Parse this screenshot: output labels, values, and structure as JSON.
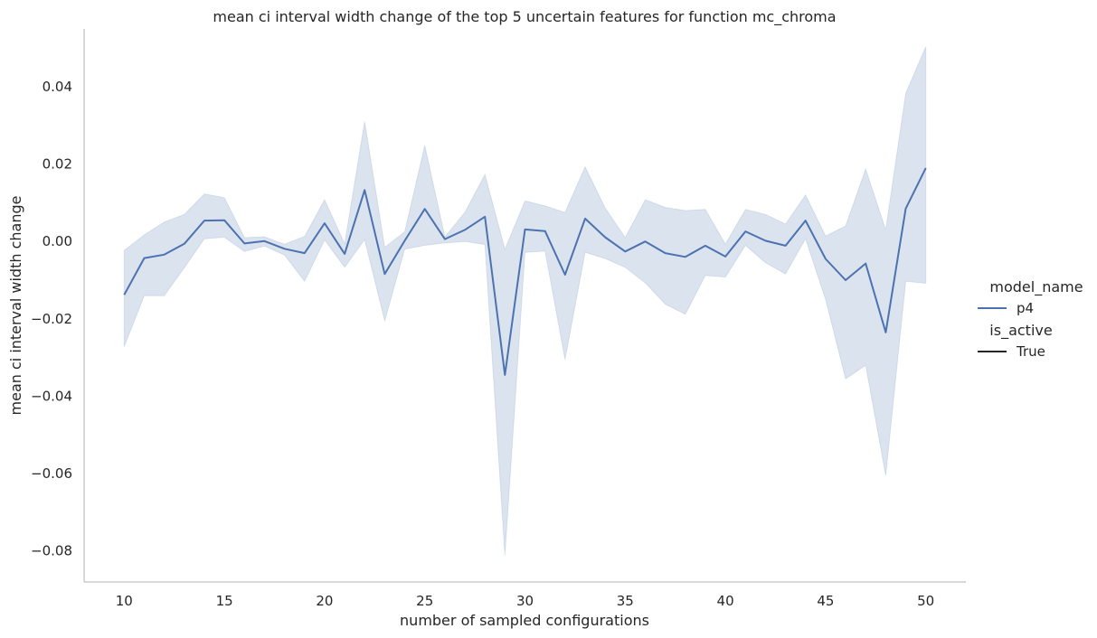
{
  "chart_data": {
    "type": "line",
    "title": "mean ci interval width change of the top 5 uncertain features for function mc_chroma",
    "xlabel": "number of sampled configurations",
    "ylabel": "mean ci interval width change",
    "xlim": [
      8,
      52
    ],
    "ylim": [
      -0.088,
      0.054
    ],
    "xticks": [
      10,
      15,
      20,
      25,
      30,
      35,
      40,
      45,
      50
    ],
    "xtick_labels": [
      "10",
      "15",
      "20",
      "25",
      "30",
      "35",
      "40",
      "45",
      "50"
    ],
    "yticks": [
      -0.08,
      -0.06,
      -0.04,
      -0.02,
      0.0,
      0.02,
      0.04
    ],
    "ytick_labels": [
      "−0.08",
      "−0.06",
      "−0.04",
      "−0.02",
      "0.00",
      "0.02",
      "0.04"
    ],
    "grid": false,
    "legend_placement": "right",
    "legend": {
      "hue_title": "model_name",
      "hue_entries": [
        {
          "label": "p4",
          "color": "#4c72b0"
        }
      ],
      "style_title": "is_active",
      "style_entries": [
        {
          "label": "True",
          "color": "#262626"
        }
      ]
    },
    "colors": {
      "line": "#4c72b0",
      "band": "#4c72b0",
      "band_opacity": 0.2
    },
    "series": [
      {
        "name": "p4",
        "x": [
          10,
          11,
          12,
          13,
          14,
          15,
          16,
          17,
          18,
          19,
          20,
          21,
          22,
          23,
          24,
          25,
          26,
          27,
          28,
          29,
          30,
          31,
          32,
          33,
          34,
          35,
          36,
          37,
          38,
          39,
          40,
          41,
          42,
          43,
          44,
          45,
          46,
          47,
          48,
          49,
          50
        ],
        "y": [
          -0.0138,
          -0.0043,
          -0.0034,
          -0.0006,
          0.0054,
          0.0055,
          -0.0005,
          0.0001,
          -0.0019,
          -0.003,
          0.0047,
          -0.0032,
          0.0133,
          -0.0084,
          0.0002,
          0.0084,
          0.0006,
          0.003,
          0.0064,
          -0.0345,
          0.0031,
          0.0027,
          -0.0086,
          0.0059,
          0.0011,
          -0.0026,
          0.0,
          -0.003,
          -0.004,
          -0.0011,
          -0.0039,
          0.0026,
          0.0002,
          -0.0011,
          0.0054,
          -0.0045,
          -0.01,
          -0.0057,
          -0.0235,
          0.0085,
          0.019
        ],
        "ci_upper": [
          -0.0023,
          0.0017,
          0.005,
          0.007,
          0.0123,
          0.0113,
          0.001,
          0.0012,
          -0.0007,
          0.0013,
          0.0108,
          -0.0006,
          0.031,
          -0.0015,
          0.0025,
          0.0248,
          0.0012,
          0.0075,
          0.0173,
          -0.002,
          0.0105,
          0.0092,
          0.0075,
          0.0193,
          0.0087,
          0.001,
          0.0108,
          0.0088,
          0.008,
          0.0083,
          -0.0007,
          0.0083,
          0.007,
          0.0045,
          0.012,
          0.0014,
          0.004,
          0.0187,
          0.003,
          0.0383,
          0.0503
        ],
        "ci_lower": [
          -0.0272,
          -0.014,
          -0.014,
          -0.0068,
          0.0007,
          0.0011,
          -0.0026,
          -0.0012,
          -0.0035,
          -0.0103,
          0.0004,
          -0.0067,
          0.0005,
          -0.0205,
          -0.002,
          -0.001,
          -0.0004,
          0.0,
          -0.0008,
          -0.0812,
          -0.0028,
          -0.0025,
          -0.0305,
          -0.0028,
          -0.0044,
          -0.0067,
          -0.0107,
          -0.0162,
          -0.0188,
          -0.0088,
          -0.0092,
          -0.001,
          -0.0055,
          -0.0084,
          0.0007,
          -0.015,
          -0.0355,
          -0.032,
          -0.0605,
          -0.0103,
          -0.0108
        ]
      }
    ]
  }
}
